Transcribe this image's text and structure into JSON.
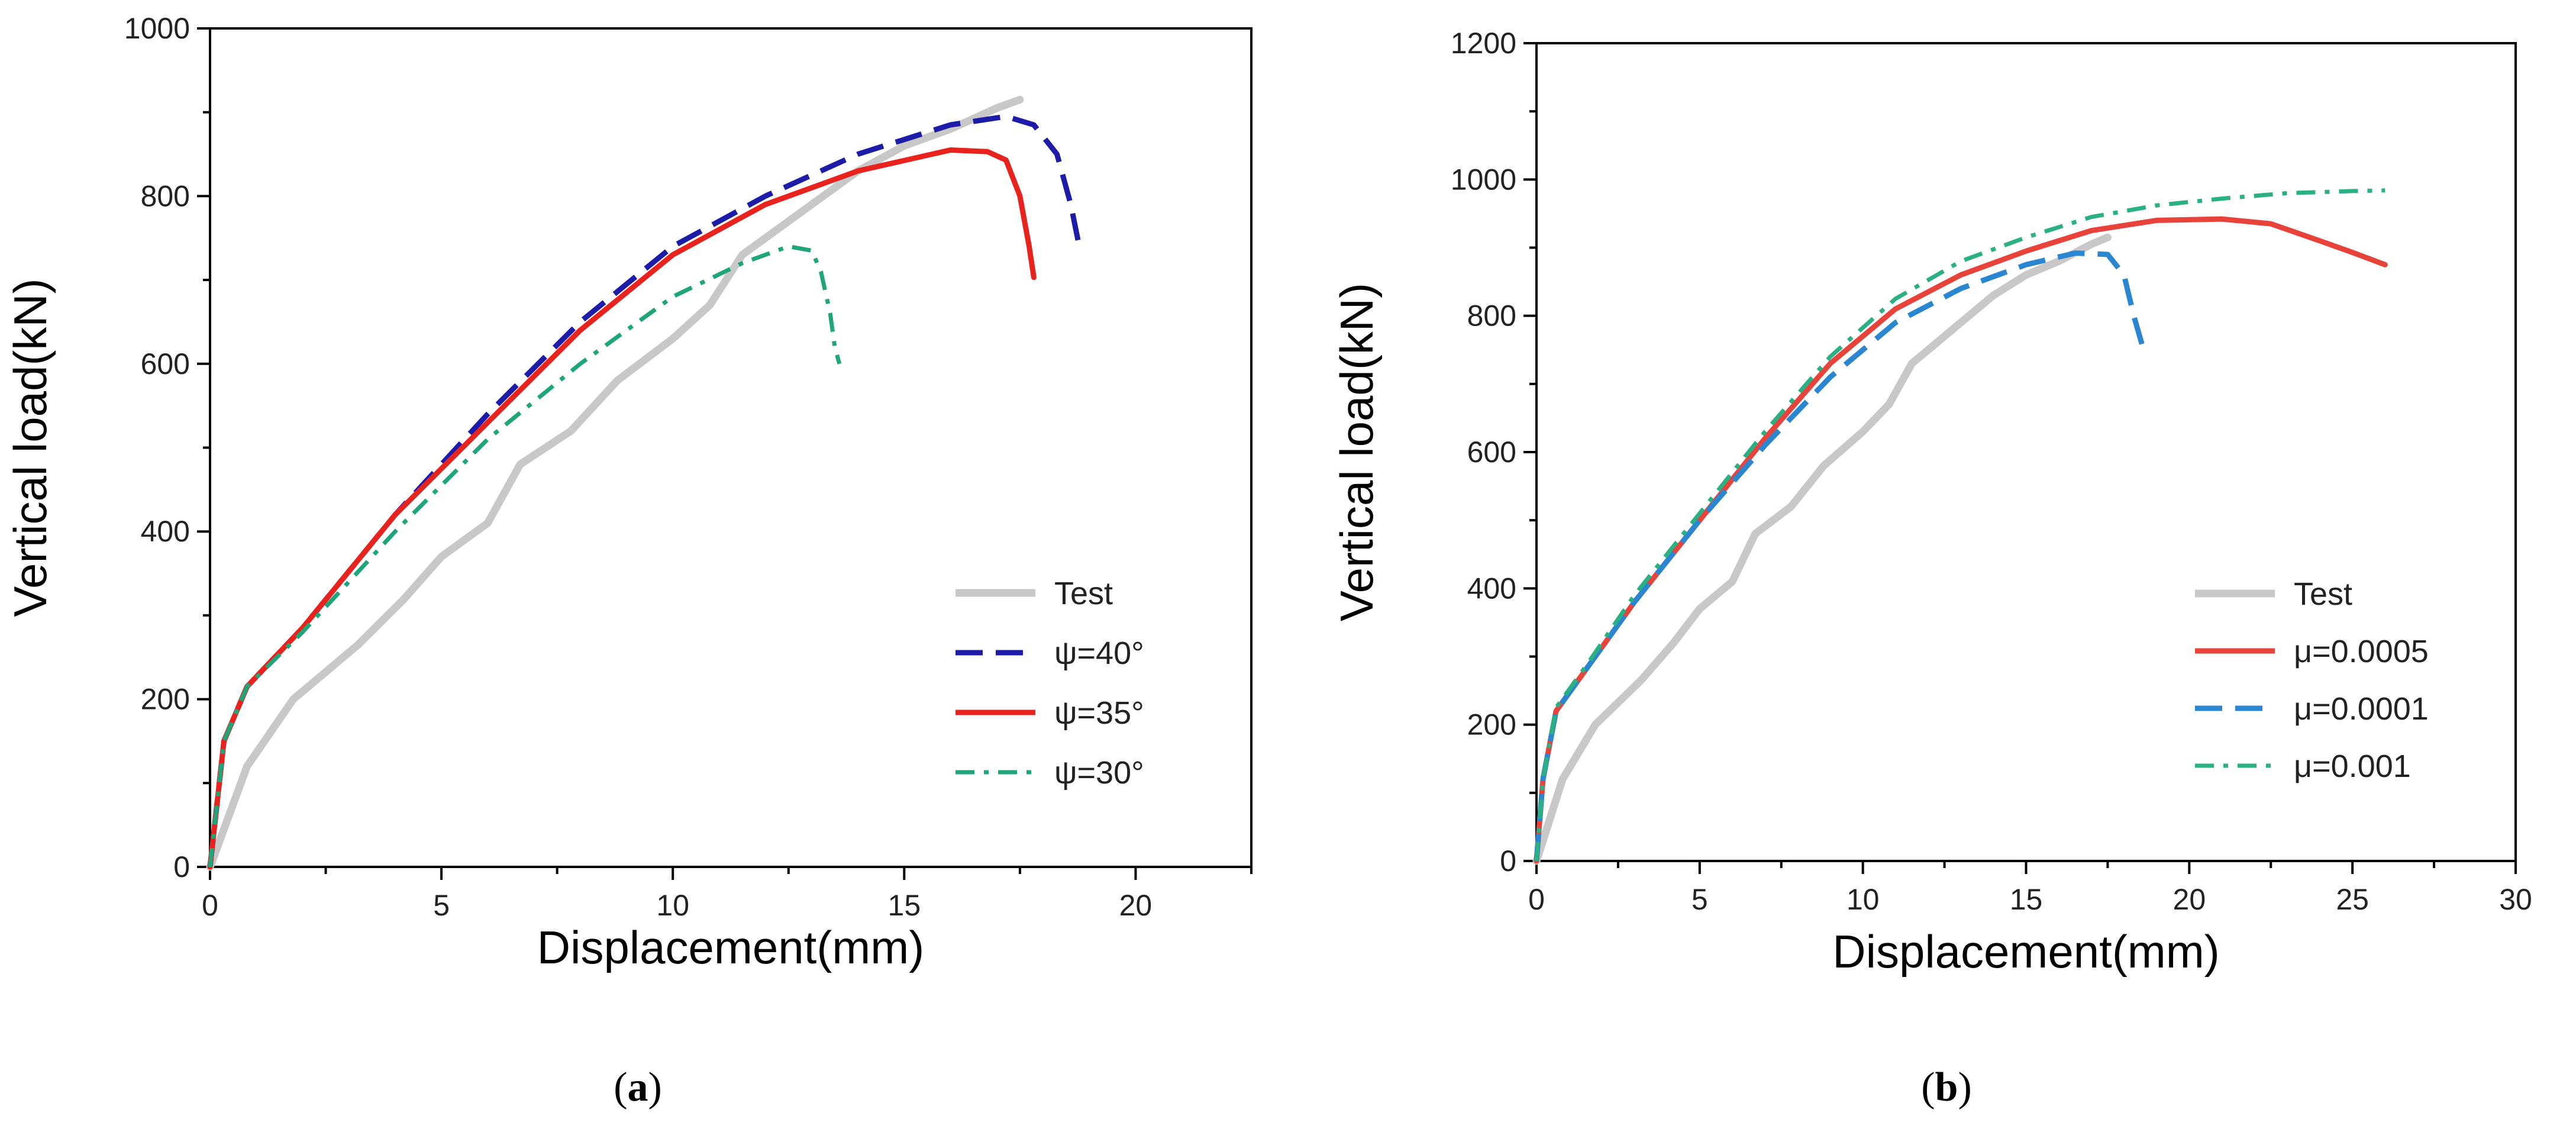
{
  "chart_data": [
    {
      "type": "line",
      "panel_label": "a",
      "xlabel": "Displacement(mm)",
      "ylabel": "Vertical load(kN)",
      "xlim": [
        0,
        22.5
      ],
      "ylim": [
        0,
        1000
      ],
      "xticks": [
        0,
        5,
        10,
        15,
        20
      ],
      "yticks": [
        0,
        200,
        400,
        600,
        800,
        1000
      ],
      "legend_position": "bottom-right",
      "series": [
        {
          "name": "Test",
          "color": "#c8c8c8",
          "style": "solid",
          "x": [
            0,
            0.8,
            1.8,
            3.2,
            4.2,
            5.0,
            6.0,
            6.7,
            7.8,
            8.8,
            10.0,
            10.8,
            11.5,
            12.5,
            14.0,
            15.0,
            16.0,
            17.0,
            17.5
          ],
          "y": [
            0,
            120,
            200,
            265,
            320,
            370,
            410,
            480,
            520,
            580,
            630,
            670,
            730,
            770,
            830,
            860,
            880,
            905,
            915
          ]
        },
        {
          "name": "ψ=40°",
          "color": "#1c1ca8",
          "style": "dash",
          "x": [
            0,
            0.3,
            0.8,
            2,
            4,
            6,
            8,
            10,
            12,
            14,
            16,
            17.2,
            17.8,
            18.3,
            18.6,
            18.8
          ],
          "y": [
            0,
            150,
            215,
            285,
            420,
            540,
            650,
            740,
            800,
            850,
            885,
            895,
            885,
            850,
            790,
            735
          ]
        },
        {
          "name": "ψ=35°",
          "color": "#e8231e",
          "style": "solid",
          "x": [
            0,
            0.3,
            0.8,
            2,
            4,
            6,
            8,
            10,
            12,
            14,
            16,
            16.8,
            17.2,
            17.5,
            17.7,
            17.8
          ],
          "y": [
            0,
            150,
            215,
            285,
            420,
            530,
            640,
            730,
            790,
            830,
            855,
            853,
            843,
            800,
            740,
            703
          ]
        },
        {
          "name": "ψ=30°",
          "color": "#1ea57a",
          "style": "dashdot",
          "x": [
            0,
            0.3,
            0.8,
            2,
            4,
            6,
            8,
            10,
            11.5,
            12.5,
            13.0,
            13.2,
            13.4,
            13.5,
            13.6
          ],
          "y": [
            0,
            150,
            215,
            280,
            400,
            510,
            600,
            680,
            720,
            740,
            735,
            710,
            660,
            620,
            600
          ]
        }
      ]
    },
    {
      "type": "line",
      "panel_label": "b",
      "xlabel": "Displacement(mm)",
      "ylabel": "Vertical load(kN)",
      "xlim": [
        0,
        30
      ],
      "ylim": [
        0,
        1200
      ],
      "xticks": [
        0,
        5,
        10,
        15,
        20,
        25,
        30
      ],
      "yticks": [
        0,
        200,
        400,
        600,
        800,
        1000,
        1200
      ],
      "legend_position": "bottom-right",
      "series": [
        {
          "name": "Test",
          "color": "#c8c8c8",
          "style": "solid",
          "x": [
            0,
            0.8,
            1.8,
            3.2,
            4.2,
            5.0,
            6.0,
            6.7,
            7.8,
            8.8,
            10.0,
            10.8,
            11.5,
            12.5,
            14.0,
            15.0,
            16.0,
            17.0,
            17.5
          ],
          "y": [
            0,
            120,
            200,
            265,
            320,
            370,
            410,
            480,
            520,
            580,
            630,
            670,
            730,
            770,
            830,
            860,
            880,
            905,
            915
          ]
        },
        {
          "name": "μ=0.0005",
          "color": "#e8433a",
          "style": "solid",
          "x": [
            0,
            0.2,
            0.6,
            1.5,
            3,
            5,
            7,
            9,
            11,
            13,
            15,
            17,
            19,
            21,
            22.5,
            24,
            25,
            26
          ],
          "y": [
            0,
            120,
            220,
            280,
            380,
            500,
            620,
            730,
            810,
            860,
            895,
            925,
            940,
            942,
            935,
            910,
            893,
            875
          ]
        },
        {
          "name": "μ=0.0001",
          "color": "#2a86d1",
          "style": "dash",
          "x": [
            0,
            0.2,
            0.6,
            1.5,
            3,
            5,
            7,
            9,
            11,
            13,
            15,
            16.5,
            17.5,
            18,
            18.3,
            18.6
          ],
          "y": [
            0,
            120,
            220,
            280,
            380,
            500,
            610,
            710,
            790,
            840,
            875,
            892,
            890,
            860,
            800,
            750
          ]
        },
        {
          "name": "μ=0.001",
          "color": "#2bb083",
          "style": "dashdot",
          "x": [
            0,
            0.2,
            0.6,
            1.5,
            3,
            5,
            7,
            9,
            11,
            13,
            15,
            17,
            19,
            21,
            23,
            25,
            26
          ],
          "y": [
            0,
            120,
            225,
            285,
            390,
            510,
            630,
            740,
            825,
            880,
            915,
            945,
            962,
            972,
            980,
            983,
            984
          ]
        }
      ]
    }
  ]
}
